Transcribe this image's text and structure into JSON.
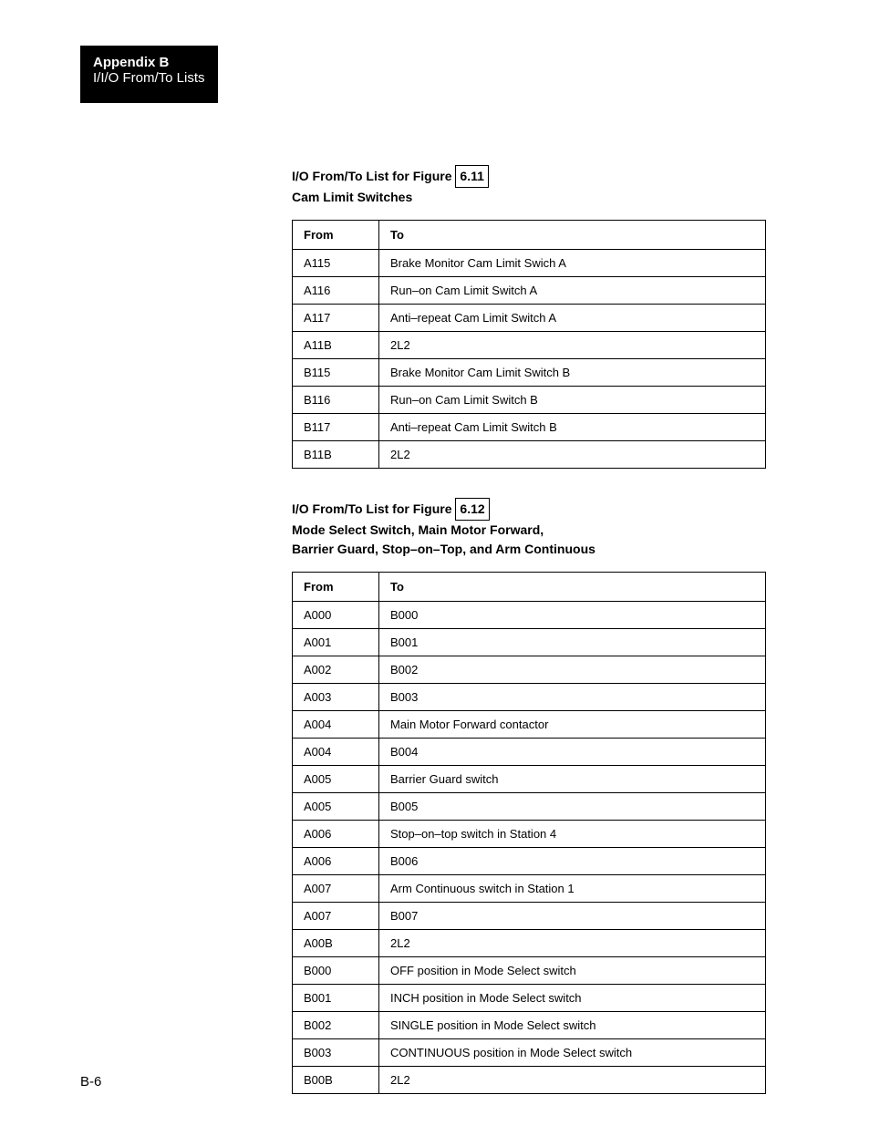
{
  "header": {
    "title": "Appendix B",
    "subtitle": "I/I/O From/To Lists"
  },
  "section1": {
    "title_prefix": "I/O From/To List for Figure",
    "figure_ref": "6.11",
    "subtitle": "Cam Limit Switches",
    "columns": {
      "from": "From",
      "to": "To"
    },
    "rows": [
      {
        "from": "A115",
        "to": "Brake Monitor Cam Limit Swich A"
      },
      {
        "from": "A116",
        "to": "Run–on Cam Limit Switch A"
      },
      {
        "from": "A117",
        "to": "Anti–repeat Cam Limit Switch A"
      },
      {
        "from": "A11B",
        "to": "2L2"
      },
      {
        "from": "B115",
        "to": "Brake Monitor Cam Limit Switch B"
      },
      {
        "from": "B116",
        "to": "Run–on Cam Limit Switch B"
      },
      {
        "from": "B117",
        "to": "Anti–repeat Cam Limit Switch B"
      },
      {
        "from": "B11B",
        "to": "2L2"
      }
    ]
  },
  "section2": {
    "title_prefix": "I/O From/To List for Figure",
    "figure_ref": "6.12",
    "subtitle_line1": "Mode Select Switch, Main Motor Forward,",
    "subtitle_line2": "Barrier Guard, Stop–on–Top, and Arm Continuous",
    "columns": {
      "from": "From",
      "to": "To"
    },
    "rows": [
      {
        "from": "A000",
        "to": "B000"
      },
      {
        "from": "A001",
        "to": "B001"
      },
      {
        "from": "A002",
        "to": "B002"
      },
      {
        "from": "A003",
        "to": "B003"
      },
      {
        "from": "A004",
        "to": "Main Motor Forward contactor"
      },
      {
        "from": "A004",
        "to": "B004"
      },
      {
        "from": "A005",
        "to": "Barrier Guard switch"
      },
      {
        "from": "A005",
        "to": "B005"
      },
      {
        "from": "A006",
        "to": "Stop–on–top switch in Station 4"
      },
      {
        "from": "A006",
        "to": "B006"
      },
      {
        "from": "A007",
        "to": "Arm Continuous switch in Station 1"
      },
      {
        "from": "A007",
        "to": "B007"
      },
      {
        "from": "A00B",
        "to": "2L2"
      },
      {
        "from": "B000",
        "to": "OFF position in Mode Select switch"
      },
      {
        "from": "B001",
        "to": "INCH position in Mode Select switch"
      },
      {
        "from": "B002",
        "to": "SINGLE position in Mode Select switch"
      },
      {
        "from": "B003",
        "to": "CONTINUOUS position in Mode Select switch"
      },
      {
        "from": "B00B",
        "to": "2L2"
      }
    ]
  },
  "page_number": "B-6"
}
